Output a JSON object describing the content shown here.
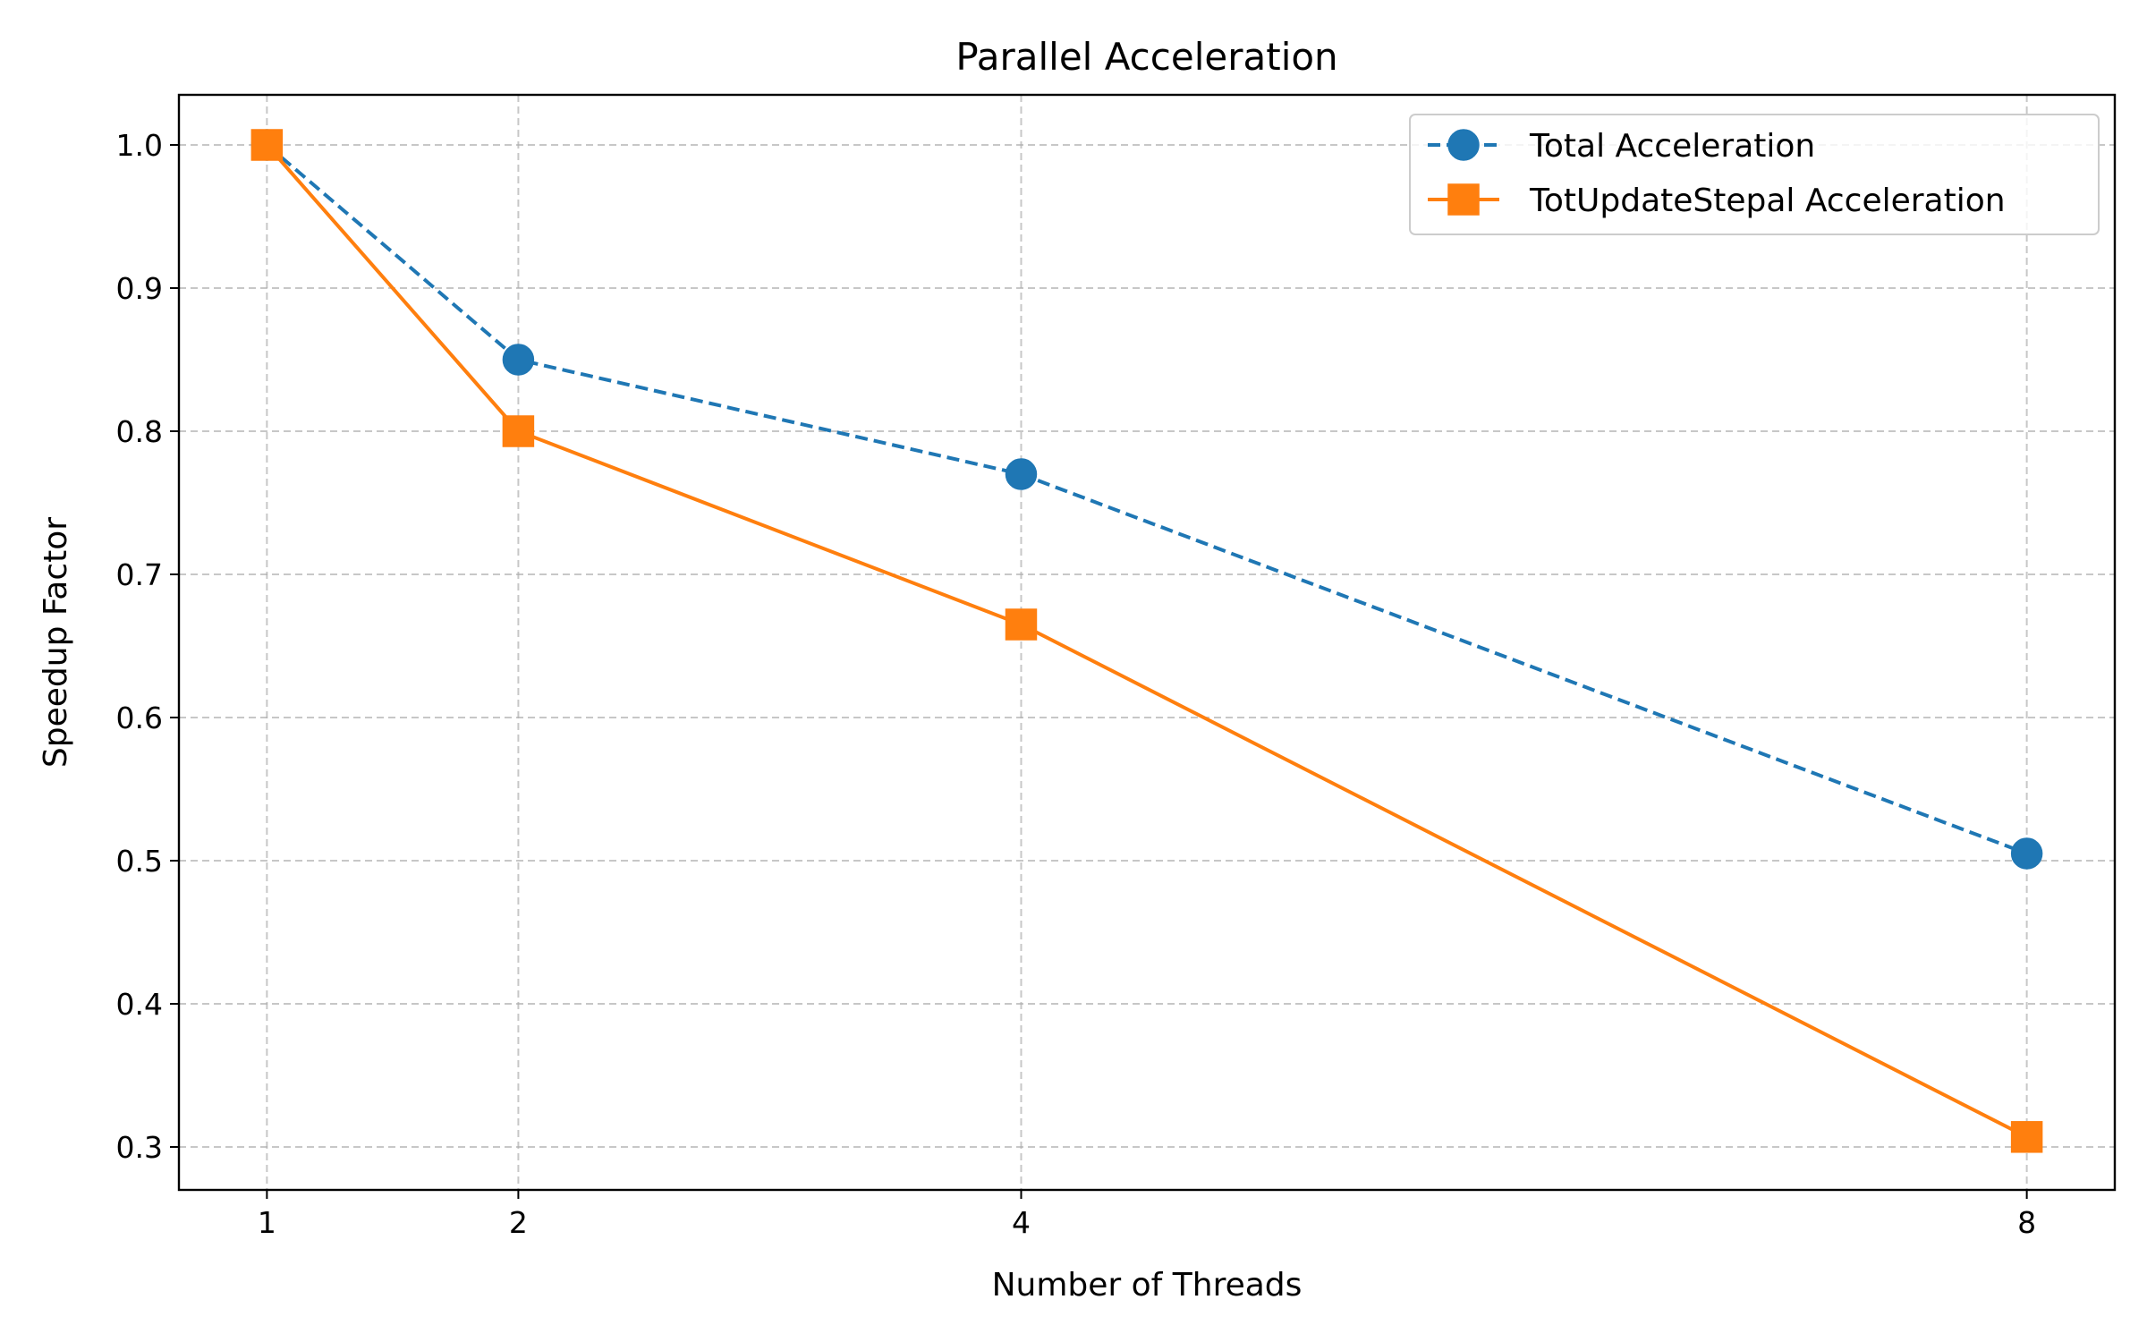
{
  "chart_data": {
    "type": "line",
    "title": "Parallel Acceleration",
    "xlabel": "Number of Threads",
    "ylabel": "Speedup Factor",
    "x": [
      1,
      2,
      4,
      8
    ],
    "xticks": [
      "1",
      "2",
      "4",
      "8"
    ],
    "xlim": [
      0.65,
      8.35
    ],
    "ylim": [
      0.27,
      1.035
    ],
    "yticks": [
      "0.3",
      "0.4",
      "0.5",
      "0.6",
      "0.7",
      "0.8",
      "0.9",
      "1.0"
    ],
    "grid": true,
    "legend_position": "upper right",
    "series": [
      {
        "name": "Total Acceleration",
        "values": [
          1.0,
          0.85,
          0.77,
          0.505
        ],
        "color": "#1f77b4",
        "line_style": "dashed",
        "marker": "circle"
      },
      {
        "name": "TotUpdateStepal Acceleration",
        "values": [
          1.0,
          0.8,
          0.665,
          0.307
        ],
        "color": "#ff7f0e",
        "line_style": "solid",
        "marker": "square"
      }
    ]
  }
}
